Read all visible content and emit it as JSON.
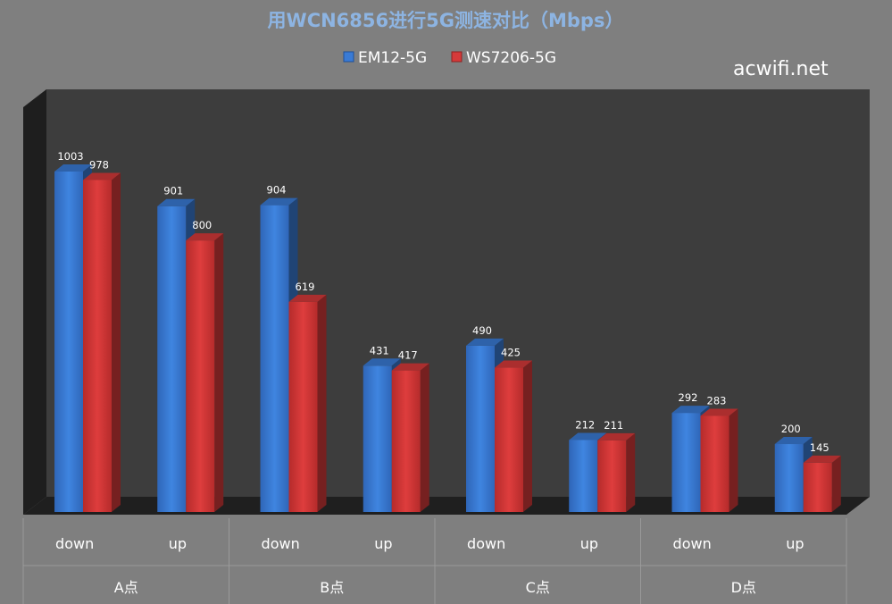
{
  "chart_data": {
    "type": "bar",
    "title": "用WCN6856进行5G测速对比（Mbps）",
    "watermark": "acwifi.net",
    "groups": [
      {
        "label": "A点",
        "categories": [
          "down",
          "up"
        ]
      },
      {
        "label": "B点",
        "categories": [
          "down",
          "up"
        ]
      },
      {
        "label": "C点",
        "categories": [
          "down",
          "up"
        ]
      },
      {
        "label": "D点",
        "categories": [
          "down",
          "up"
        ]
      }
    ],
    "categories": [
      "down",
      "up",
      "down",
      "up",
      "down",
      "up",
      "down",
      "up"
    ],
    "series": [
      {
        "name": "EM12-5G",
        "color": "#3a7bd5",
        "values": [
          1003,
          901,
          904,
          431,
          490,
          212,
          292,
          200
        ]
      },
      {
        "name": "WS7206-5G",
        "color": "#d63a3a",
        "values": [
          978,
          800,
          619,
          417,
          425,
          211,
          283,
          145
        ]
      }
    ],
    "ylim": [
      0,
      1100
    ],
    "legend_position": "top-center",
    "grid": false,
    "colors": {
      "background": "#7f7f7f",
      "plot_back_wall": "#3d3d3d",
      "title": "#8db4e2"
    }
  }
}
